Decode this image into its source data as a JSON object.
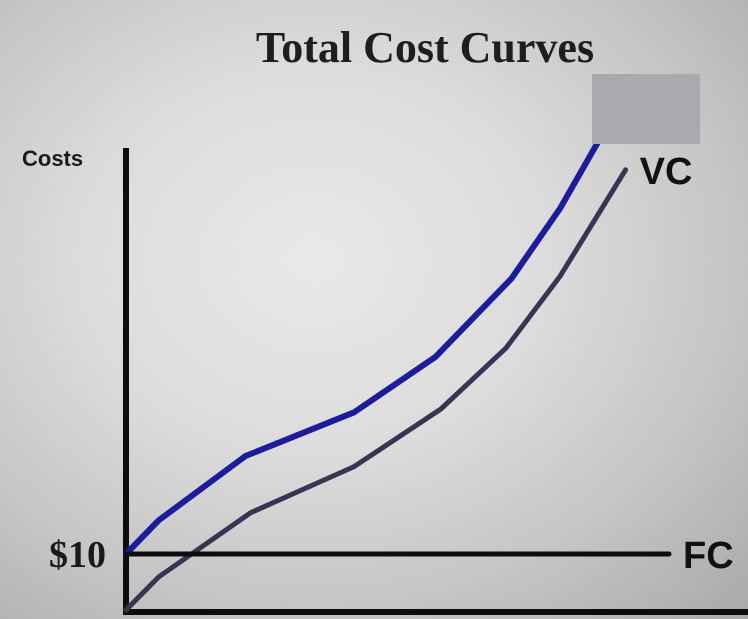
{
  "chart_data": {
    "type": "line",
    "title": "Total Cost Curves",
    "ylabel": "Costs",
    "xlabel": "",
    "yticks": [
      {
        "value": 10,
        "label": "$10"
      }
    ],
    "xlim": [
      0,
      100
    ],
    "ylim": [
      0,
      95
    ],
    "series": [
      {
        "id": "tc",
        "name": "",
        "color": "#1c1c9c",
        "x": [
          0,
          6,
          22,
          42,
          57,
          71,
          80,
          89
        ],
        "y": [
          10,
          16,
          27.5,
          35.3,
          45.2,
          59.2,
          71.8,
          87.1
        ]
      },
      {
        "id": "vc",
        "name": "VC",
        "color": "#3b3350",
        "x": [
          0,
          6,
          23,
          42,
          58,
          70,
          80,
          92
        ],
        "y": [
          0,
          5.9,
          17.4,
          25.6,
          35.9,
          46.8,
          59.7,
          78.6
        ]
      },
      {
        "id": "fc",
        "name": "FC",
        "color": "#0d0d0d",
        "x": [
          0,
          100
        ],
        "y": [
          10,
          10
        ]
      }
    ],
    "grid": false,
    "legend": "none"
  },
  "overlay": {
    "color": "#a8aaad"
  }
}
